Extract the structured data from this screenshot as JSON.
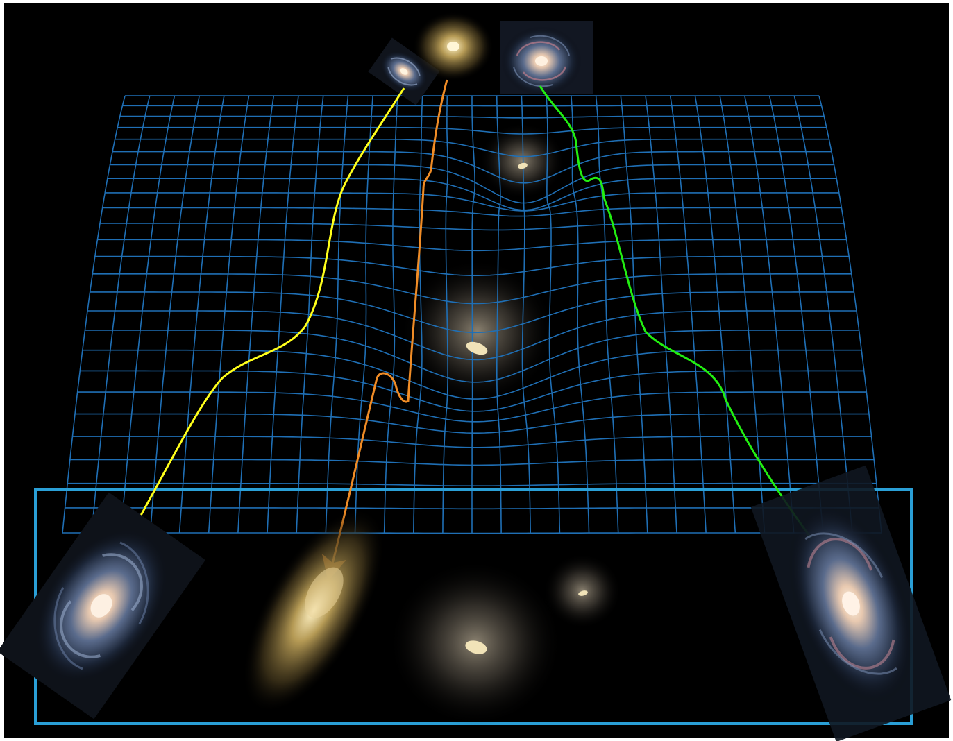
{
  "colors": {
    "background": "#000000",
    "frame": "#ffffff",
    "grid": "#1f6fb5",
    "box": "#2a9fd6",
    "ray_yellow": "#ffff1a",
    "ray_orange": "#f08c26",
    "ray_green": "#22ee11",
    "lens_core": "#f1e3b8"
  },
  "diagram": {
    "grid": {
      "rows": 26,
      "columns": 29,
      "wells": [
        "foreground-lens-large",
        "foreground-lens-small"
      ]
    },
    "sources": [
      {
        "name": "source-spiral-galaxy-small",
        "icon": "spiral-galaxy-icon"
      },
      {
        "name": "source-elliptical-galaxy",
        "icon": "elliptical-galaxy-icon"
      },
      {
        "name": "source-spiral-galaxy-faceon",
        "icon": "spiral-galaxy-icon"
      }
    ],
    "rays": [
      {
        "name": "yellow-light-ray",
        "color": "#ffff1a"
      },
      {
        "name": "orange-light-ray",
        "color": "#f08c26"
      },
      {
        "name": "green-light-ray",
        "color": "#22ee11"
      }
    ],
    "images": [
      {
        "name": "lensed-spiral-image-left",
        "icon": "spiral-galaxy-icon"
      },
      {
        "name": "lensed-elliptical-image",
        "icon": "elliptical-galaxy-icon"
      },
      {
        "name": "lensed-spiral-image-right",
        "icon": "spiral-galaxy-icon"
      }
    ],
    "lenses": [
      {
        "name": "lens-galaxy-large",
        "icon": "lens-glow-icon"
      },
      {
        "name": "lens-galaxy-small",
        "icon": "lens-glow-icon"
      }
    ]
  }
}
